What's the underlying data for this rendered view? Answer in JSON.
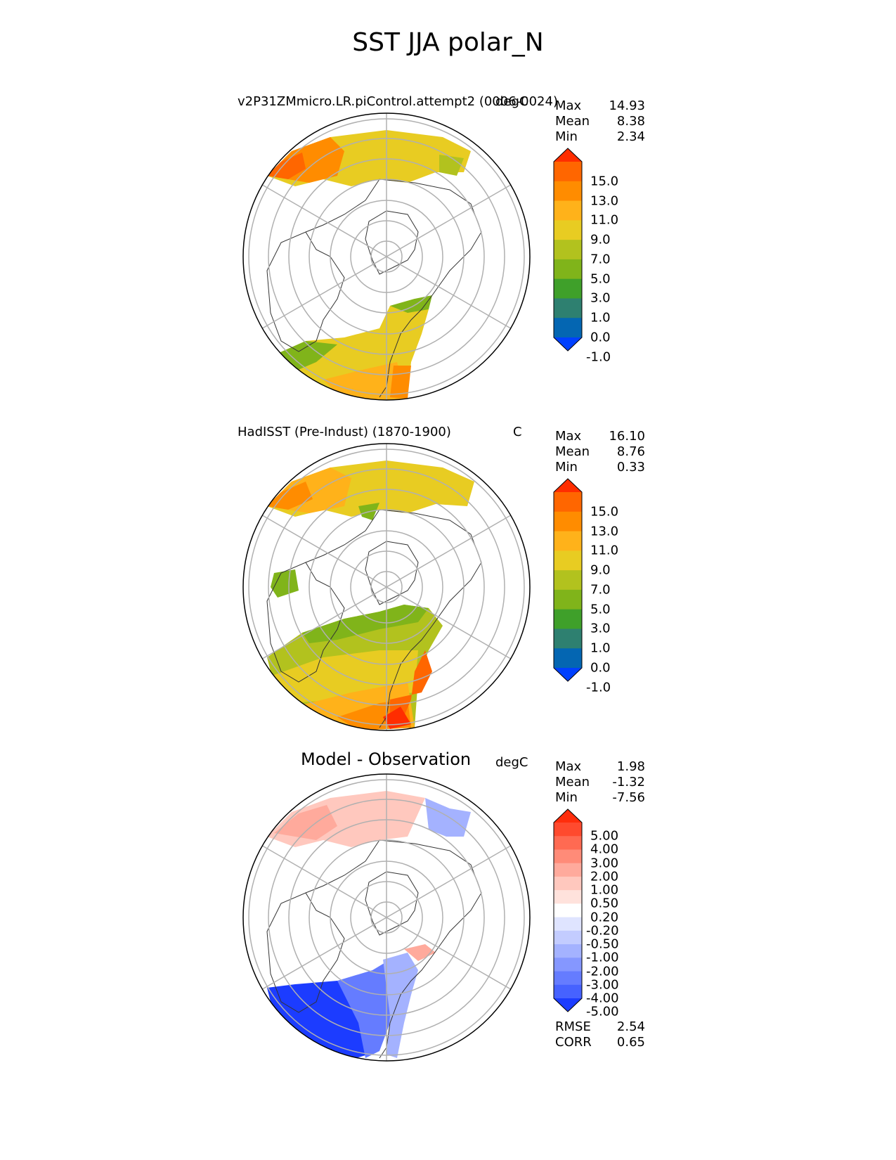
{
  "figure_title": "SST JJA polar_N",
  "panels": [
    {
      "title": "v2P31ZMmicro.LR.piControl.attempt2 (0006-0024)",
      "units": "degC",
      "stats": [
        {
          "label": "Max",
          "value": "14.93"
        },
        {
          "label": "Mean",
          "value": "8.38"
        },
        {
          "label": "Min",
          "value": "2.34"
        }
      ],
      "colorbar": {
        "labels": [
          "15.0",
          "13.0",
          "11.0",
          "9.0",
          "7.0",
          "5.0",
          "3.0",
          "1.0",
          "0.0",
          "-1.0"
        ],
        "colors": [
          "#ff2d00",
          "#ff6600",
          "#ff8c00",
          "#ffb21a",
          "#e8cc22",
          "#b2c21e",
          "#80b41a",
          "#3fa02a",
          "#2e8070",
          "#0466b2",
          "#0040ff"
        ]
      }
    },
    {
      "title": "HadISST (Pre-Indust) (1870-1900)",
      "units": "C",
      "stats": [
        {
          "label": "Max",
          "value": "16.10"
        },
        {
          "label": "Mean",
          "value": "8.76"
        },
        {
          "label": "Min",
          "value": "0.33"
        }
      ],
      "colorbar": {
        "labels": [
          "15.0",
          "13.0",
          "11.0",
          "9.0",
          "7.0",
          "5.0",
          "3.0",
          "1.0",
          "0.0",
          "-1.0"
        ],
        "colors": [
          "#ff2d00",
          "#ff6600",
          "#ff8c00",
          "#ffb21a",
          "#e8cc22",
          "#b2c21e",
          "#80b41a",
          "#3fa02a",
          "#2e8070",
          "#0466b2",
          "#0040ff"
        ]
      }
    },
    {
      "title": "Model - Observation",
      "units": "degC",
      "stats": [
        {
          "label": "Max",
          "value": "1.98"
        },
        {
          "label": "Mean",
          "value": "-1.32"
        },
        {
          "label": "Min",
          "value": "-7.56"
        }
      ],
      "colorbar": {
        "labels": [
          "5.00",
          "4.00",
          "3.00",
          "2.00",
          "1.00",
          "0.50",
          "0.20",
          "-0.20",
          "-0.50",
          "-1.00",
          "-2.00",
          "-3.00",
          "-4.00",
          "-5.00"
        ],
        "colors": [
          "#ff2d0c",
          "#ff4a2e",
          "#ff6a52",
          "#ff8b78",
          "#ffaa9c",
          "#ffc8be",
          "#ffe2dc",
          "#ffffff",
          "#dfe4ff",
          "#c3ccff",
          "#a4b2ff",
          "#8597ff",
          "#657cff",
          "#4662ff",
          "#1c3cff"
        ]
      },
      "extra_stats": [
        {
          "label": "RMSE",
          "value": "2.54"
        },
        {
          "label": "CORR",
          "value": "0.65"
        }
      ]
    }
  ]
}
